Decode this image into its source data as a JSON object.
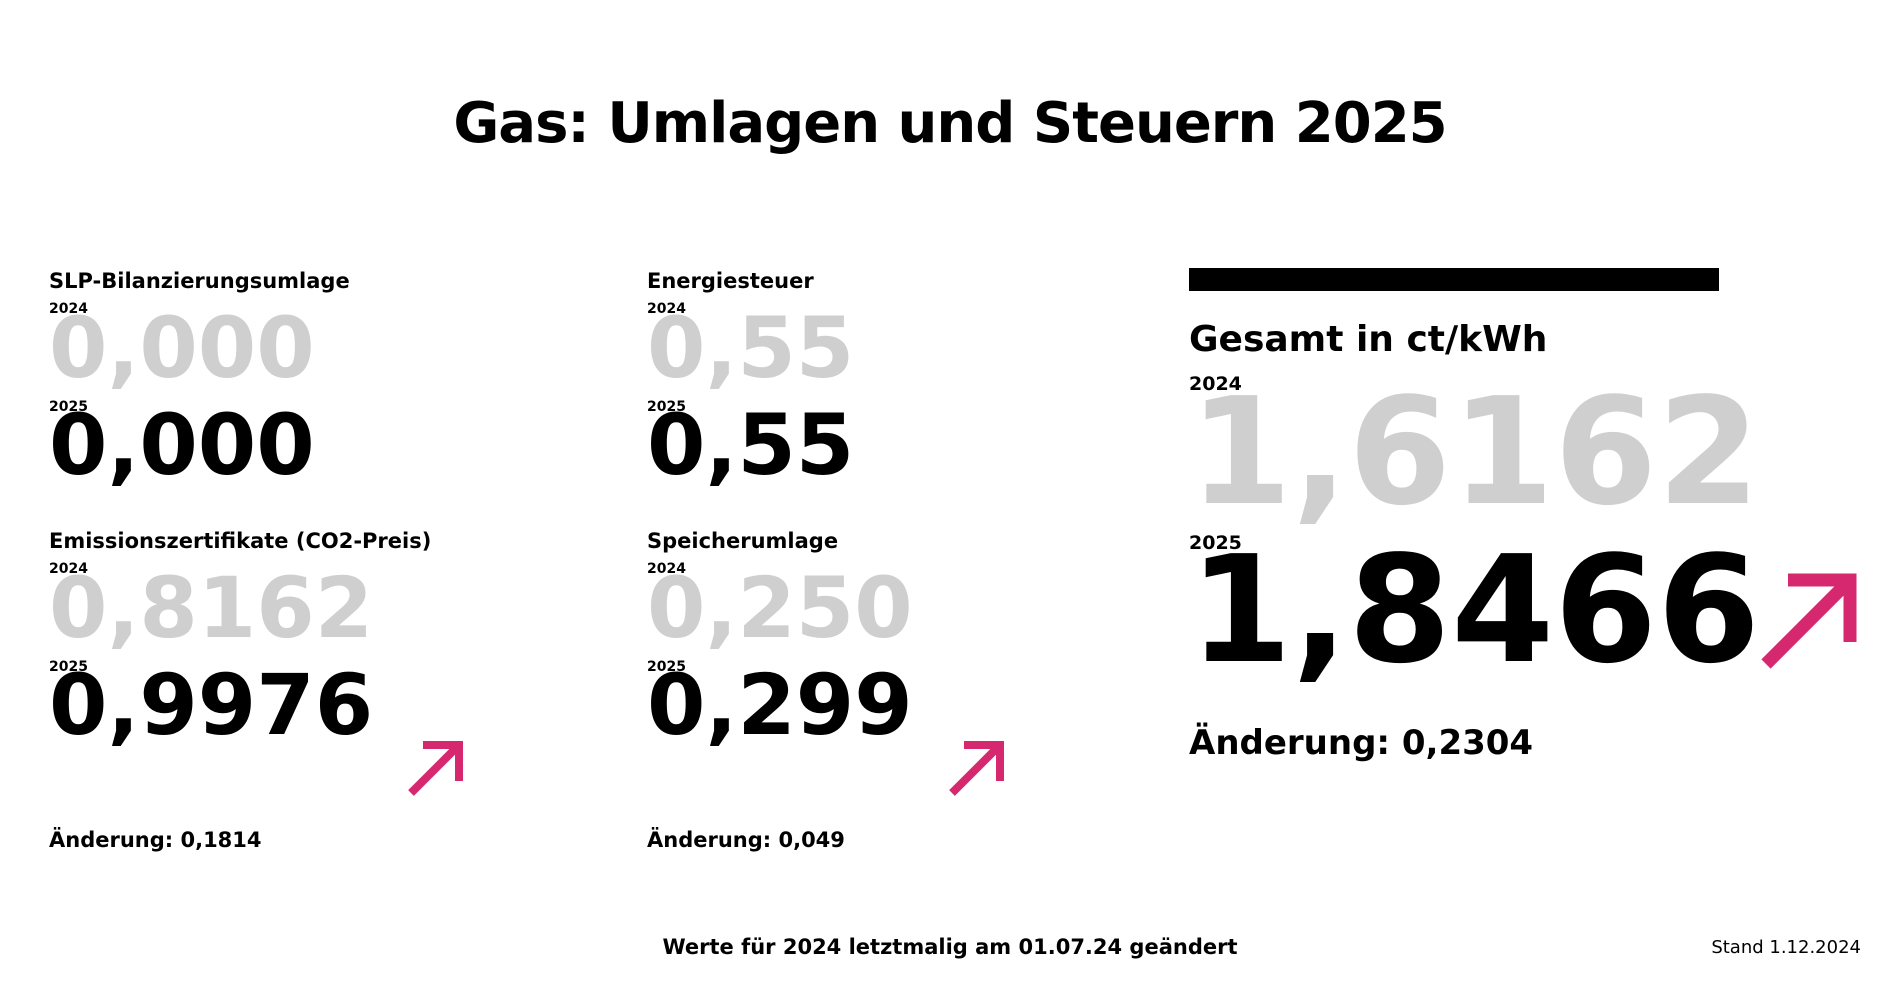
{
  "title": "Gas: Umlagen und Steuern 2025",
  "items": [
    {
      "label": "SLP-Bilanzierungsumlage",
      "prev_year": "2024",
      "prev_value": "0,000",
      "curr_year": "2025",
      "curr_value": "0,000"
    },
    {
      "label": "Energiesteuer",
      "prev_year": "2024",
      "prev_value": "0,55",
      "curr_year": "2025",
      "curr_value": "0,55"
    },
    {
      "label": "Emissionszertifikate (CO2-Preis)",
      "prev_year": "2024",
      "prev_value": "0,8162",
      "curr_year": "2025",
      "curr_value": "0,9976",
      "change": "Änderung: 0,1814"
    },
    {
      "label": "Speicherumlage",
      "prev_year": "2024",
      "prev_value": "0,250",
      "curr_year": "2025",
      "curr_value": "0,299",
      "change": "Änderung: 0,049"
    }
  ],
  "total": {
    "label": "Gesamt in ct/kWh",
    "prev_year": "2024",
    "prev_value": "1,6162",
    "curr_year": "2025",
    "curr_value": "1,8466",
    "change": "Änderung: 0,2304"
  },
  "footer": {
    "note": "Werte für 2024 letztmalig am 01.07.24 geändert",
    "stand": "Stand 1.12.2024"
  }
}
